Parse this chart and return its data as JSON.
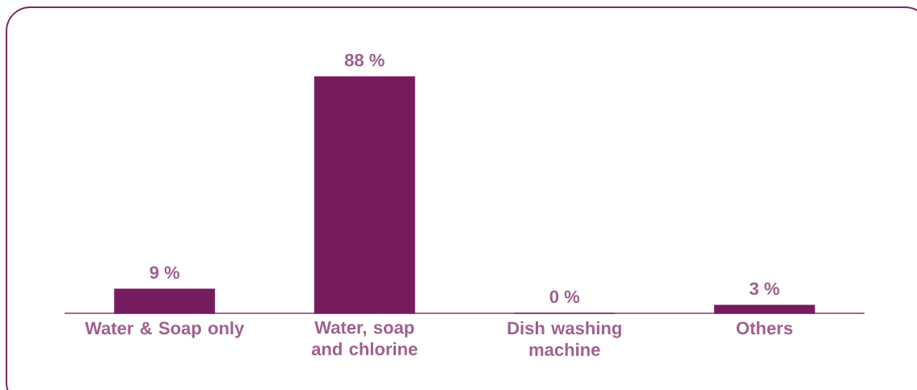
{
  "chart_data": {
    "type": "bar",
    "categories": [
      "Water & Soap only",
      "Water, soap and chlorine",
      "Dish washing machine",
      "Others"
    ],
    "values": [
      9,
      88,
      0,
      3
    ],
    "value_labels": [
      "9 %",
      "88 %",
      "0 %",
      "3 %"
    ],
    "color": "#761c5e"
  }
}
